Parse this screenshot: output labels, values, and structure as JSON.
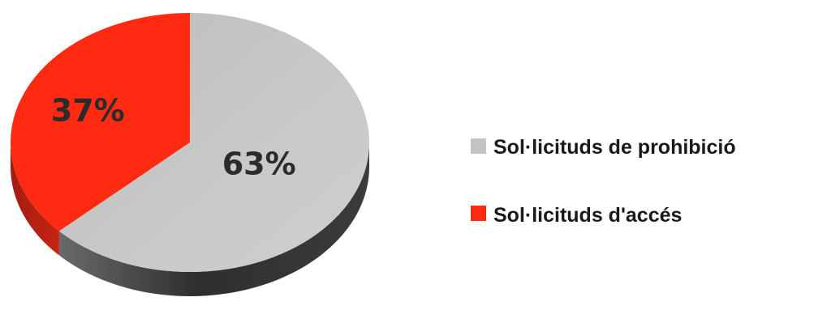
{
  "chart_data": {
    "type": "pie",
    "title": "",
    "slices": [
      {
        "label": "Sol·licituds de prohibició",
        "value": 63,
        "display": "63%",
        "color": "#c4c4c4",
        "side_color": "#3a3a3a"
      },
      {
        "label": "Sol·licituds d'accés",
        "value": 37,
        "display": "37%",
        "color": "#ff2a12",
        "side_color": "#9c1c10"
      }
    ],
    "legend": {
      "placement": "right",
      "entries": [
        {
          "label": "Sol·licituds de prohibició",
          "color": "#c4c4c4"
        },
        {
          "label": "Sol·licituds d'accés",
          "color": "#ff2a12"
        }
      ]
    },
    "style": "3d"
  }
}
